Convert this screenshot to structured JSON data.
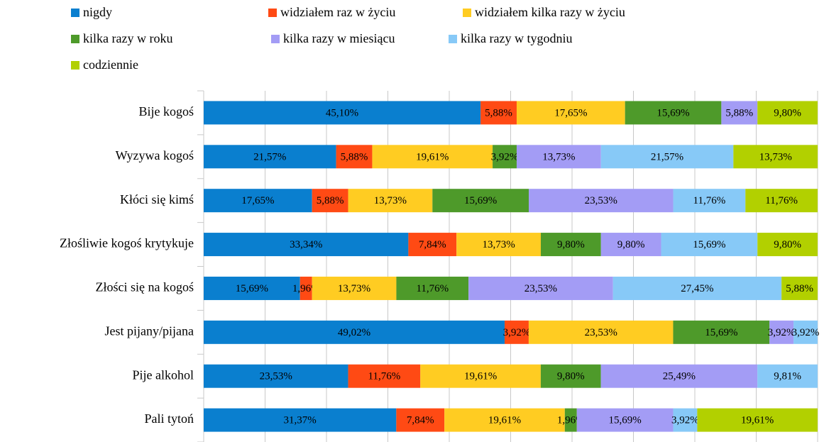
{
  "chart_data": {
    "type": "stacked_barh",
    "categories": [
      "Bije kogoś",
      "Wyzywa kogoś",
      "Kłóci się  kimś",
      "Złośliwie kogoś krytykuje",
      "Złości się na kogoś",
      "Jest pijany/pijana",
      "Pije alkohol",
      "Pali tytoń"
    ],
    "xlim": [
      0,
      100
    ],
    "xticks": [
      0,
      10,
      20,
      30,
      40,
      50,
      60,
      70,
      80,
      90,
      100
    ],
    "grid": true,
    "legend": "top",
    "series": [
      {
        "name": "nigdy",
        "color": "#0a7fcf",
        "values": [
          45.1,
          21.57,
          17.65,
          33.34,
          15.69,
          49.02,
          23.53,
          31.37
        ],
        "value_labels": [
          "45,10%",
          "21,57%",
          "17,65%",
          "33,34%",
          "15,69%",
          "49,02%",
          "23,53%",
          "31,37%"
        ]
      },
      {
        "name": "widziałem raz w życiu",
        "color": "#ff4a14",
        "values": [
          5.88,
          5.88,
          5.88,
          7.84,
          1.96,
          3.92,
          11.76,
          7.84
        ],
        "value_labels": [
          "5,88%",
          "5,88%",
          "5,88%",
          "7,84%",
          "1,96%",
          "3,92%",
          "11,76%",
          "7,84%"
        ]
      },
      {
        "name": "widziałem kilka razy w życiu",
        "color": "#ffcc22",
        "values": [
          17.65,
          19.61,
          13.73,
          13.73,
          13.73,
          23.53,
          19.61,
          19.61
        ],
        "value_labels": [
          "17,65%",
          "19,61%",
          "13,73%",
          "13,73%",
          "13,73%",
          "23,53%",
          "19,61%",
          "19,61%"
        ]
      },
      {
        "name": "kilka razy w roku",
        "color": "#4e9a2a",
        "values": [
          15.69,
          3.92,
          15.69,
          9.8,
          11.76,
          15.69,
          9.8,
          1.96
        ],
        "value_labels": [
          "15,69%",
          "3,92%",
          "15,69%",
          "9,80%",
          "11,76%",
          "15,69%",
          "9,80%",
          "1,96%"
        ]
      },
      {
        "name": "kilka razy w miesiącu",
        "color": "#a39cf5",
        "values": [
          5.88,
          13.73,
          23.53,
          9.8,
          23.53,
          3.92,
          25.49,
          15.69
        ],
        "value_labels": [
          "5,88%",
          "13,73%",
          "23,53%",
          "9,80%",
          "23,53%",
          "3,92%",
          "25,49%",
          "15,69%"
        ]
      },
      {
        "name": "kilka razy w tygodniu",
        "color": "#87c9f7",
        "values": [
          0,
          21.57,
          11.76,
          15.69,
          27.45,
          3.92,
          9.81,
          3.92
        ],
        "value_labels": [
          null,
          "21,57%",
          "11,76%",
          "15,69%",
          "27,45%",
          "3,92%",
          "9,81%",
          "3,92%"
        ]
      },
      {
        "name": "codziennie",
        "color": "#b2d000",
        "values": [
          9.8,
          13.73,
          11.76,
          9.8,
          5.88,
          0,
          0,
          19.61
        ],
        "value_labels": [
          "9,80%",
          "13,73%",
          "11,76%",
          "9,80%",
          "5,88%",
          null,
          null,
          "19,61%"
        ]
      }
    ]
  }
}
